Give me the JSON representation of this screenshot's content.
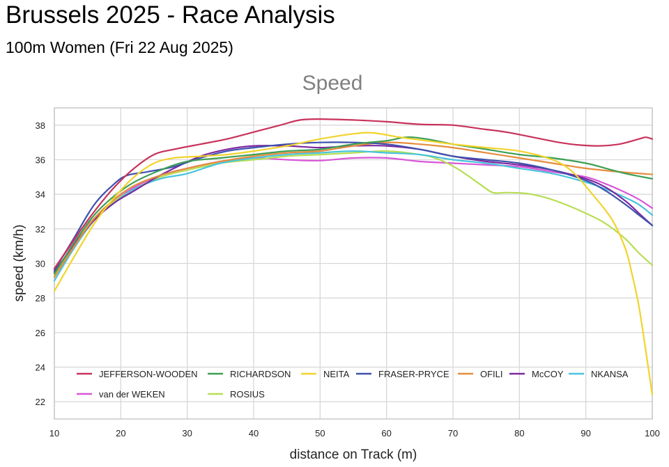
{
  "header": {
    "title": "Brussels 2025 - Race Analysis",
    "subtitle": "100m Women (Fri 22 Aug 2025)"
  },
  "chart_data": {
    "type": "line",
    "title": "Speed",
    "xlabel": "distance on Track (m)",
    "ylabel": "speed (km/h)",
    "xlim": [
      10,
      100
    ],
    "ylim": [
      21,
      39
    ],
    "x_ticks": [
      10,
      20,
      30,
      40,
      50,
      60,
      70,
      80,
      90,
      100
    ],
    "y_ticks": [
      22,
      24,
      26,
      28,
      30,
      32,
      34,
      36,
      38
    ],
    "grid": true,
    "legend_position": "bottom-inside",
    "series": [
      {
        "name": "JEFFERSON-WOODEN",
        "color": "#c8325a",
        "points": [
          [
            10,
            29.7
          ],
          [
            13,
            31.4
          ],
          [
            16,
            33.0
          ],
          [
            19,
            34.4
          ],
          [
            22,
            35.5
          ],
          [
            25,
            36.3
          ],
          [
            28,
            36.6
          ],
          [
            32,
            36.9
          ],
          [
            36,
            37.2
          ],
          [
            40,
            37.6
          ],
          [
            44,
            38.0
          ],
          [
            47,
            38.3
          ],
          [
            50,
            38.35
          ],
          [
            55,
            38.3
          ],
          [
            60,
            38.2
          ],
          [
            65,
            38.05
          ],
          [
            70,
            38.0
          ],
          [
            74,
            37.8
          ],
          [
            78,
            37.6
          ],
          [
            82,
            37.3
          ],
          [
            86,
            37.0
          ],
          [
            89,
            36.85
          ],
          [
            92,
            36.8
          ],
          [
            95,
            36.9
          ],
          [
            98,
            37.2
          ],
          [
            99,
            37.3
          ],
          [
            100,
            37.2
          ]
        ]
      },
      {
        "name": "RICHARDSON",
        "color": "#3c9e55",
        "points": [
          [
            10,
            29.4
          ],
          [
            13,
            31.2
          ],
          [
            16,
            32.8
          ],
          [
            19,
            33.9
          ],
          [
            22,
            34.7
          ],
          [
            26,
            35.4
          ],
          [
            30,
            35.9
          ],
          [
            35,
            36.1
          ],
          [
            40,
            36.3
          ],
          [
            45,
            36.5
          ],
          [
            50,
            36.6
          ],
          [
            55,
            36.9
          ],
          [
            60,
            37.1
          ],
          [
            63,
            37.3
          ],
          [
            66,
            37.2
          ],
          [
            70,
            36.9
          ],
          [
            75,
            36.6
          ],
          [
            80,
            36.3
          ],
          [
            85,
            36.1
          ],
          [
            90,
            35.8
          ],
          [
            93,
            35.5
          ],
          [
            96,
            35.2
          ],
          [
            100,
            34.9
          ]
        ]
      },
      {
        "name": "NEITA",
        "color": "#f2d32b",
        "points": [
          [
            10,
            28.4
          ],
          [
            13,
            30.4
          ],
          [
            16,
            32.3
          ],
          [
            19,
            33.8
          ],
          [
            22,
            35.0
          ],
          [
            25,
            35.8
          ],
          [
            28,
            36.1
          ],
          [
            32,
            36.2
          ],
          [
            36,
            36.3
          ],
          [
            40,
            36.5
          ],
          [
            45,
            36.8
          ],
          [
            50,
            37.2
          ],
          [
            55,
            37.5
          ],
          [
            58,
            37.55
          ],
          [
            62,
            37.3
          ],
          [
            66,
            37.1
          ],
          [
            70,
            36.9
          ],
          [
            75,
            36.7
          ],
          [
            80,
            36.5
          ],
          [
            85,
            36.0
          ],
          [
            88,
            35.3
          ],
          [
            91,
            34.0
          ],
          [
            94,
            32.5
          ],
          [
            96,
            30.8
          ],
          [
            97,
            29.3
          ],
          [
            98,
            27.5
          ],
          [
            99,
            25.0
          ],
          [
            100,
            22.4
          ]
        ]
      },
      {
        "name": "FRASER-PRYCE",
        "color": "#3d51ad",
        "points": [
          [
            10,
            29.6
          ],
          [
            13,
            31.5
          ],
          [
            16,
            33.4
          ],
          [
            19,
            34.6
          ],
          [
            21,
            35.1
          ],
          [
            24,
            35.3
          ],
          [
            28,
            35.6
          ],
          [
            32,
            36.1
          ],
          [
            36,
            36.5
          ],
          [
            40,
            36.7
          ],
          [
            45,
            36.9
          ],
          [
            50,
            37.0
          ],
          [
            55,
            37.0
          ],
          [
            60,
            36.9
          ],
          [
            65,
            36.6
          ],
          [
            70,
            36.2
          ],
          [
            75,
            36.0
          ],
          [
            80,
            35.8
          ],
          [
            85,
            35.4
          ],
          [
            90,
            34.8
          ],
          [
            93,
            34.2
          ],
          [
            96,
            33.4
          ],
          [
            98,
            32.8
          ],
          [
            100,
            32.2
          ]
        ]
      },
      {
        "name": "OFILI",
        "color": "#e68c3d",
        "points": [
          [
            10,
            29.2
          ],
          [
            13,
            31.0
          ],
          [
            16,
            32.6
          ],
          [
            19,
            33.7
          ],
          [
            22,
            34.5
          ],
          [
            26,
            35.1
          ],
          [
            30,
            35.5
          ],
          [
            35,
            35.9
          ],
          [
            40,
            36.2
          ],
          [
            45,
            36.4
          ],
          [
            50,
            36.5
          ],
          [
            55,
            36.8
          ],
          [
            60,
            37.0
          ],
          [
            65,
            36.9
          ],
          [
            70,
            36.7
          ],
          [
            75,
            36.4
          ],
          [
            80,
            36.1
          ],
          [
            85,
            35.8
          ],
          [
            90,
            35.5
          ],
          [
            95,
            35.3
          ],
          [
            100,
            35.15
          ]
        ]
      },
      {
        "name": "McCOY",
        "color": "#7d28a0",
        "points": [
          [
            10,
            29.5
          ],
          [
            13,
            31.1
          ],
          [
            16,
            32.5
          ],
          [
            19,
            33.5
          ],
          [
            22,
            34.2
          ],
          [
            25,
            34.9
          ],
          [
            28,
            35.5
          ],
          [
            32,
            36.2
          ],
          [
            36,
            36.6
          ],
          [
            40,
            36.8
          ],
          [
            45,
            36.8
          ],
          [
            50,
            36.7
          ],
          [
            55,
            36.8
          ],
          [
            60,
            36.8
          ],
          [
            65,
            36.6
          ],
          [
            70,
            36.2
          ],
          [
            75,
            35.9
          ],
          [
            80,
            35.7
          ],
          [
            85,
            35.4
          ],
          [
            90,
            34.9
          ],
          [
            93,
            34.4
          ],
          [
            96,
            33.6
          ],
          [
            98,
            32.9
          ],
          [
            100,
            32.2
          ]
        ]
      },
      {
        "name": "NKANSA",
        "color": "#48c4dc",
        "points": [
          [
            10,
            29.0
          ],
          [
            13,
            30.9
          ],
          [
            16,
            32.5
          ],
          [
            19,
            33.5
          ],
          [
            22,
            34.3
          ],
          [
            26,
            34.9
          ],
          [
            30,
            35.2
          ],
          [
            35,
            35.8
          ],
          [
            40,
            36.1
          ],
          [
            45,
            36.3
          ],
          [
            50,
            36.4
          ],
          [
            55,
            36.5
          ],
          [
            60,
            36.4
          ],
          [
            65,
            36.3
          ],
          [
            70,
            36.0
          ],
          [
            75,
            35.8
          ],
          [
            80,
            35.5
          ],
          [
            85,
            35.2
          ],
          [
            90,
            34.7
          ],
          [
            93,
            34.3
          ],
          [
            96,
            33.8
          ],
          [
            98,
            33.4
          ],
          [
            100,
            32.8
          ]
        ]
      },
      {
        "name": "van der WEKEN",
        "color": "#d856d8",
        "points": [
          [
            10,
            29.7
          ],
          [
            13,
            31.3
          ],
          [
            16,
            32.6
          ],
          [
            19,
            33.6
          ],
          [
            22,
            34.4
          ],
          [
            26,
            35.1
          ],
          [
            30,
            35.5
          ],
          [
            35,
            35.9
          ],
          [
            40,
            36.1
          ],
          [
            45,
            36.0
          ],
          [
            50,
            35.95
          ],
          [
            55,
            36.1
          ],
          [
            60,
            36.1
          ],
          [
            65,
            35.9
          ],
          [
            70,
            35.8
          ],
          [
            75,
            35.7
          ],
          [
            80,
            35.6
          ],
          [
            85,
            35.3
          ],
          [
            90,
            35.0
          ],
          [
            93,
            34.6
          ],
          [
            96,
            34.1
          ],
          [
            98,
            33.7
          ],
          [
            100,
            33.2
          ]
        ]
      },
      {
        "name": "ROSIUS",
        "color": "#b7de54",
        "points": [
          [
            10,
            29.3
          ],
          [
            13,
            31.1
          ],
          [
            16,
            32.6
          ],
          [
            19,
            33.6
          ],
          [
            22,
            34.3
          ],
          [
            26,
            35.0
          ],
          [
            30,
            35.4
          ],
          [
            35,
            35.8
          ],
          [
            40,
            36.0
          ],
          [
            45,
            36.2
          ],
          [
            50,
            36.3
          ],
          [
            55,
            36.4
          ],
          [
            60,
            36.5
          ],
          [
            65,
            36.3
          ],
          [
            68,
            36.0
          ],
          [
            71,
            35.4
          ],
          [
            74,
            34.6
          ],
          [
            76,
            34.1
          ],
          [
            78,
            34.1
          ],
          [
            81,
            34.05
          ],
          [
            84,
            33.8
          ],
          [
            87,
            33.4
          ],
          [
            90,
            32.9
          ],
          [
            93,
            32.3
          ],
          [
            96,
            31.4
          ],
          [
            98,
            30.6
          ],
          [
            100,
            29.9
          ]
        ]
      }
    ]
  }
}
